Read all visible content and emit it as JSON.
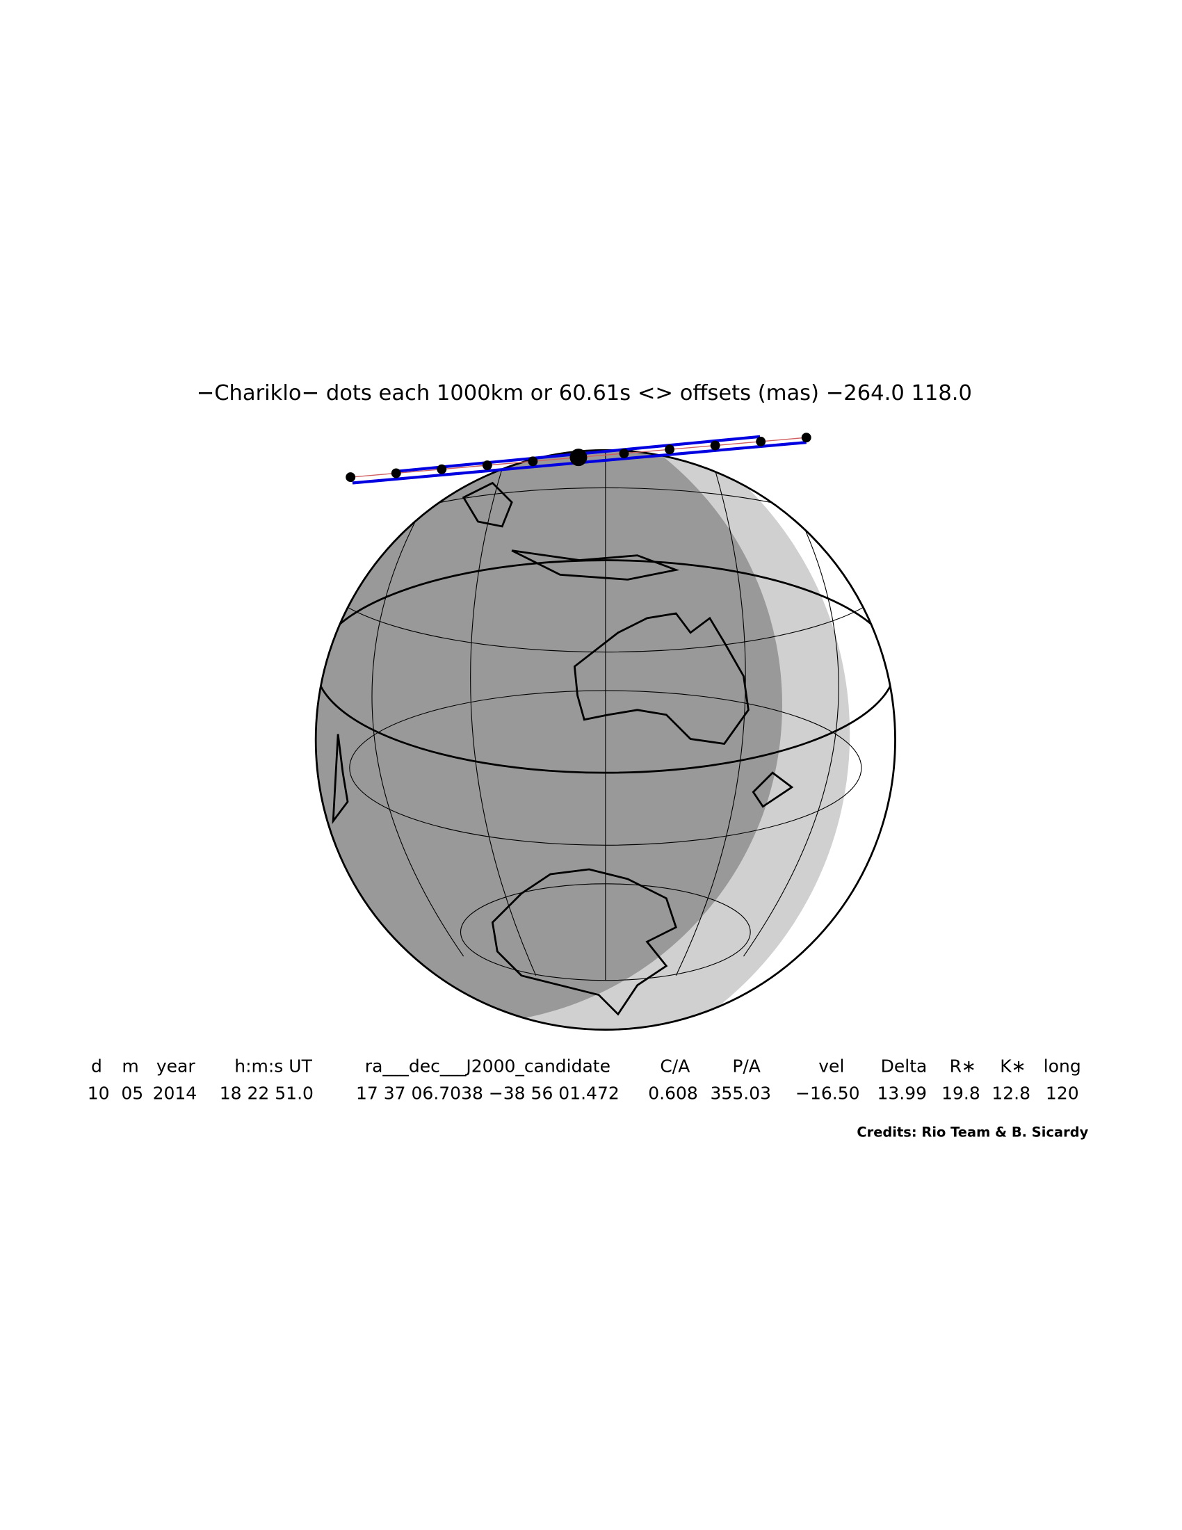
{
  "title": "−Chariklo− dots each 1000km or 60.61s <> offsets (mas) −264.0  118.0",
  "table": {
    "headers": [
      "d",
      "m",
      "year",
      "h:m:s UT",
      "ra___dec___J2000_candidate",
      "C/A",
      "P/A",
      "vel",
      "Delta",
      "R∗",
      "K∗",
      "long"
    ],
    "rows": [
      [
        "10",
        "05",
        "2014",
        "18 22 51.0",
        "17 37 06.7038 −38 56 01.472",
        "0.608",
        "355.03",
        "−16.50",
        "13.99",
        "19.8",
        "12.8",
        "120"
      ]
    ]
  },
  "credits": "Credits: Rio Team & B. Sicardy"
}
